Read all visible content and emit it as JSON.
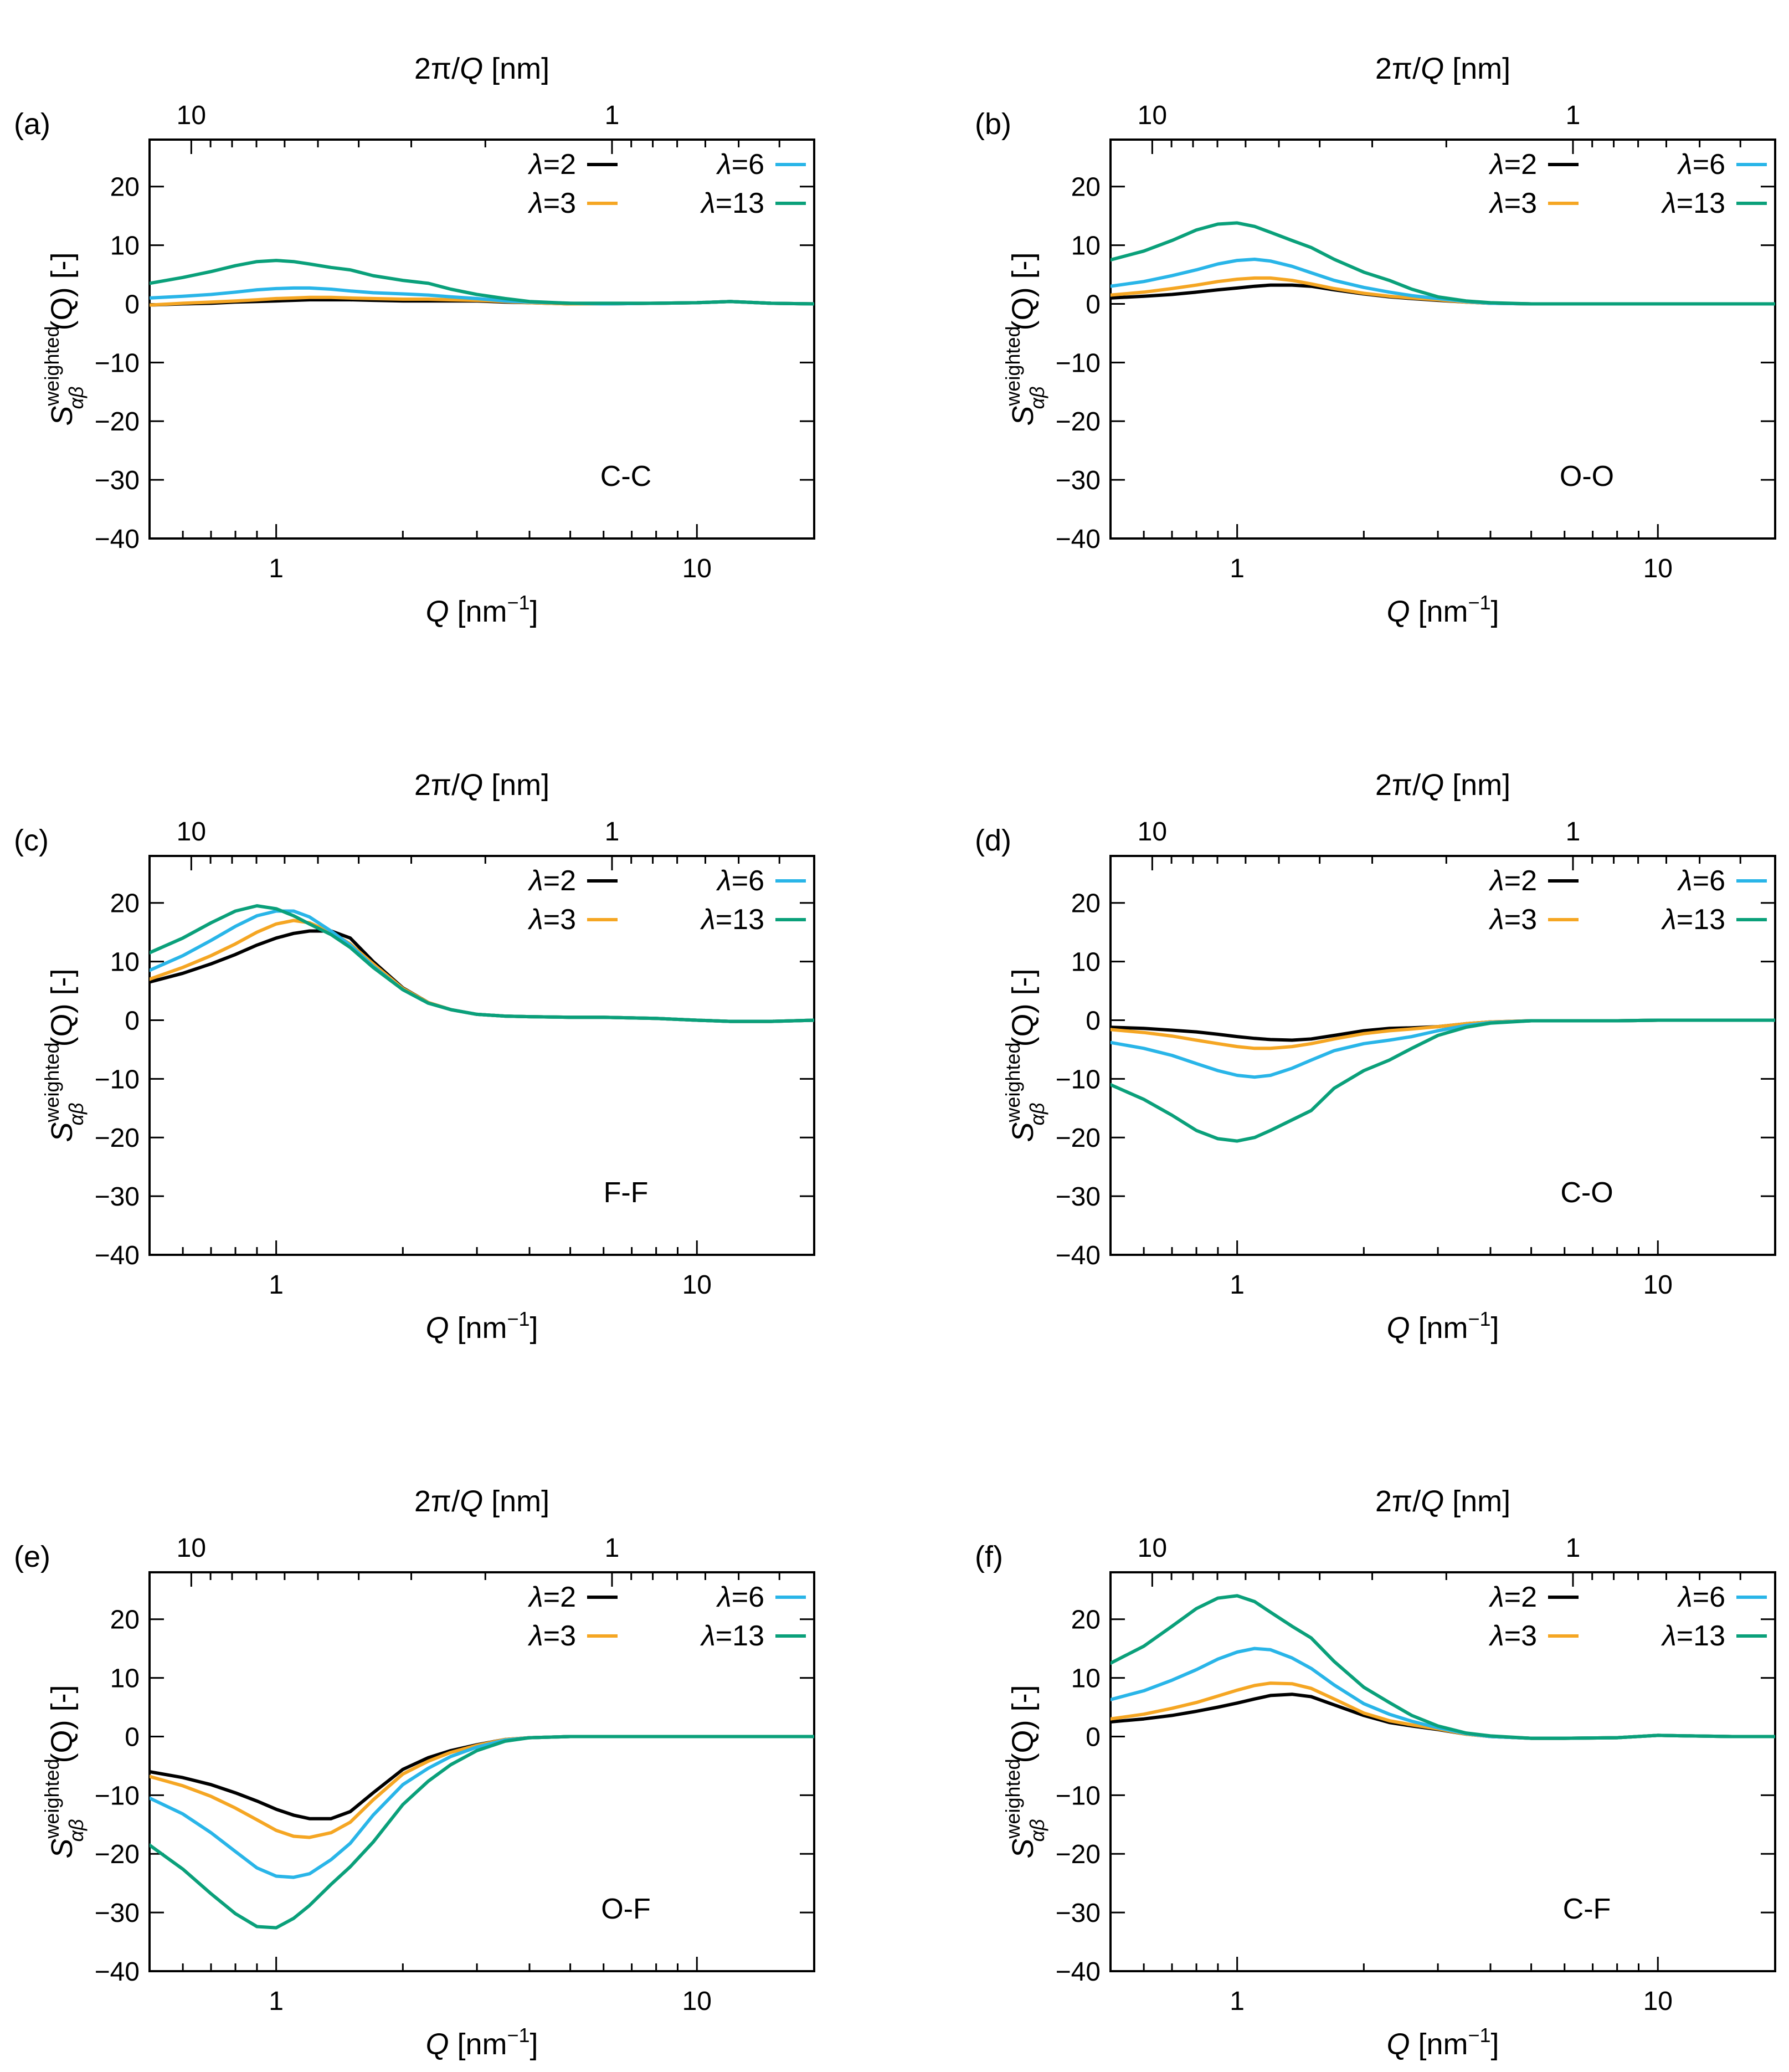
{
  "colors": {
    "lambda2": "#000000",
    "lambda3": "#f5a623",
    "lambda6": "#29b5e8",
    "lambda13": "#0aa07a"
  },
  "legend": [
    {
      "sym": "λ",
      "value": "=2",
      "key": "lambda2"
    },
    {
      "sym": "λ",
      "value": "=3",
      "key": "lambda3"
    },
    {
      "sym": "λ",
      "value": "=6",
      "key": "lambda6"
    },
    {
      "sym": "λ",
      "value": "=13",
      "key": "lambda13"
    }
  ],
  "axes": {
    "xlabel_main": "Q",
    "xlabel_unit": " [nm",
    "xlabel_exp": "−1",
    "xlabel_close": "]",
    "top_label_pre": "2π/",
    "top_label_q": "Q",
    "top_label_unit": " [nm]",
    "ylabel_S": "S",
    "ylabel_sup": "weighted",
    "ylabel_sub": "αβ",
    "ylabel_rest": "(Q) [-]",
    "xticks_bottom": [
      "1",
      "10"
    ],
    "xticks_top": [
      "10",
      "1"
    ],
    "yticks": [
      "20",
      "10",
      "0",
      "−10",
      "−20",
      "−30",
      "−40"
    ]
  },
  "chart_data": [
    {
      "type": "line",
      "tag": "(a)",
      "pair": "C-C",
      "xscale": "log",
      "xlim": [
        0.5,
        19
      ],
      "ylim": [
        -40,
        28
      ],
      "x": [
        0.5,
        0.6,
        0.7,
        0.8,
        0.9,
        1.0,
        1.1,
        1.2,
        1.35,
        1.5,
        1.7,
        2.0,
        2.3,
        2.6,
        3.0,
        3.5,
        4.0,
        5.0,
        6.0,
        8.0,
        10.0,
        12.0,
        15.0,
        19.0
      ],
      "series": [
        {
          "name": "λ=2",
          "values": [
            -0.2,
            0.0,
            0.1,
            0.3,
            0.4,
            0.5,
            0.6,
            0.7,
            0.7,
            0.7,
            0.6,
            0.5,
            0.5,
            0.5,
            0.5,
            0.3,
            0.2,
            0.0,
            0.0,
            0.1,
            0.2,
            0.4,
            0.1,
            0.0
          ]
        },
        {
          "name": "λ=3",
          "values": [
            -0.2,
            0.1,
            0.3,
            0.5,
            0.7,
            0.9,
            1.0,
            1.1,
            1.1,
            1.0,
            0.9,
            0.8,
            0.8,
            0.7,
            0.6,
            0.4,
            0.2,
            0.0,
            0.0,
            0.1,
            0.2,
            0.4,
            0.1,
            0.0
          ]
        },
        {
          "name": "λ=6",
          "values": [
            1.0,
            1.3,
            1.6,
            2.0,
            2.4,
            2.6,
            2.7,
            2.7,
            2.5,
            2.2,
            1.9,
            1.7,
            1.5,
            1.2,
            0.9,
            0.5,
            0.3,
            0.1,
            0.0,
            0.1,
            0.2,
            0.4,
            0.1,
            0.0
          ]
        },
        {
          "name": "λ=13",
          "values": [
            3.5,
            4.5,
            5.5,
            6.5,
            7.2,
            7.4,
            7.2,
            6.8,
            6.2,
            5.8,
            4.8,
            4.0,
            3.5,
            2.5,
            1.6,
            0.9,
            0.4,
            0.1,
            0.1,
            0.1,
            0.2,
            0.4,
            0.1,
            0.0
          ]
        }
      ]
    },
    {
      "type": "line",
      "tag": "(b)",
      "pair": "O-O",
      "xscale": "log",
      "xlim": [
        0.5,
        19
      ],
      "ylim": [
        -40,
        28
      ],
      "x": [
        0.5,
        0.6,
        0.7,
        0.8,
        0.9,
        1.0,
        1.1,
        1.2,
        1.35,
        1.5,
        1.7,
        2.0,
        2.3,
        2.6,
        3.0,
        3.5,
        4.0,
        5.0,
        6.0,
        8.0,
        10.0,
        12.0,
        15.0,
        19.0
      ],
      "series": [
        {
          "name": "λ=2",
          "values": [
            1.0,
            1.3,
            1.6,
            2.0,
            2.4,
            2.7,
            3.0,
            3.2,
            3.2,
            3.0,
            2.4,
            1.7,
            1.2,
            0.9,
            0.6,
            0.3,
            0.1,
            0.0,
            0.0,
            0.0,
            0.0,
            0.0,
            0.0,
            0.0
          ]
        },
        {
          "name": "λ=3",
          "values": [
            1.5,
            2.0,
            2.6,
            3.2,
            3.8,
            4.2,
            4.4,
            4.4,
            4.0,
            3.4,
            2.6,
            1.8,
            1.3,
            1.0,
            0.7,
            0.3,
            0.1,
            0.0,
            0.0,
            0.0,
            0.0,
            0.0,
            0.0,
            0.0
          ]
        },
        {
          "name": "λ=6",
          "values": [
            3.0,
            3.8,
            4.8,
            5.8,
            6.8,
            7.4,
            7.6,
            7.3,
            6.4,
            5.3,
            4.0,
            2.8,
            2.0,
            1.4,
            0.9,
            0.4,
            0.1,
            0.0,
            0.0,
            0.0,
            0.0,
            0.0,
            0.0,
            0.0
          ]
        },
        {
          "name": "λ=13",
          "values": [
            7.5,
            9.0,
            10.8,
            12.6,
            13.6,
            13.8,
            13.2,
            12.2,
            10.8,
            9.6,
            7.6,
            5.4,
            4.0,
            2.5,
            1.2,
            0.5,
            0.2,
            0.0,
            0.0,
            0.0,
            0.0,
            0.0,
            0.0,
            0.0
          ]
        }
      ]
    },
    {
      "type": "line",
      "tag": "(c)",
      "pair": "F-F",
      "xscale": "log",
      "xlim": [
        0.5,
        19
      ],
      "ylim": [
        -40,
        28
      ],
      "x": [
        0.5,
        0.6,
        0.7,
        0.8,
        0.9,
        1.0,
        1.1,
        1.2,
        1.35,
        1.5,
        1.7,
        2.0,
        2.3,
        2.6,
        3.0,
        3.5,
        4.0,
        5.0,
        6.0,
        8.0,
        10.0,
        12.0,
        15.0,
        19.0
      ],
      "series": [
        {
          "name": "λ=2",
          "values": [
            6.5,
            8.0,
            9.6,
            11.2,
            12.8,
            14.0,
            14.8,
            15.2,
            15.2,
            14.0,
            10.0,
            5.5,
            3.0,
            1.8,
            1.0,
            0.7,
            0.6,
            0.5,
            0.5,
            0.3,
            0.0,
            -0.2,
            -0.2,
            0.0
          ]
        },
        {
          "name": "λ=3",
          "values": [
            7.0,
            9.0,
            11.0,
            13.0,
            15.0,
            16.4,
            17.0,
            16.6,
            15.0,
            13.0,
            9.6,
            5.4,
            3.0,
            1.8,
            1.0,
            0.7,
            0.6,
            0.5,
            0.5,
            0.3,
            0.0,
            -0.2,
            -0.2,
            0.0
          ]
        },
        {
          "name": "λ=6",
          "values": [
            8.5,
            11.0,
            13.6,
            16.0,
            17.8,
            18.6,
            18.6,
            17.6,
            15.2,
            12.8,
            9.2,
            5.2,
            2.9,
            1.8,
            1.0,
            0.7,
            0.6,
            0.5,
            0.5,
            0.3,
            0.0,
            -0.2,
            -0.2,
            0.0
          ]
        },
        {
          "name": "λ=13",
          "values": [
            11.5,
            14.0,
            16.6,
            18.6,
            19.5,
            19.0,
            17.8,
            16.4,
            14.6,
            12.4,
            9.0,
            5.2,
            2.9,
            1.8,
            1.0,
            0.7,
            0.6,
            0.5,
            0.5,
            0.3,
            0.0,
            -0.2,
            -0.2,
            0.0
          ]
        }
      ]
    },
    {
      "type": "line",
      "tag": "(d)",
      "pair": "C-O",
      "xscale": "log",
      "xlim": [
        0.5,
        19
      ],
      "ylim": [
        -40,
        28
      ],
      "x": [
        0.5,
        0.6,
        0.7,
        0.8,
        0.9,
        1.0,
        1.1,
        1.2,
        1.35,
        1.5,
        1.7,
        2.0,
        2.3,
        2.6,
        3.0,
        3.5,
        4.0,
        5.0,
        6.0,
        8.0,
        10.0,
        12.0,
        15.0,
        19.0
      ],
      "series": [
        {
          "name": "λ=2",
          "values": [
            -1.2,
            -1.4,
            -1.7,
            -2.0,
            -2.4,
            -2.8,
            -3.1,
            -3.3,
            -3.4,
            -3.2,
            -2.6,
            -1.8,
            -1.4,
            -1.3,
            -1.1,
            -0.6,
            -0.3,
            -0.1,
            -0.1,
            -0.1,
            0.0,
            0.0,
            0.0,
            0.0
          ]
        },
        {
          "name": "λ=3",
          "values": [
            -1.6,
            -2.1,
            -2.7,
            -3.4,
            -4.0,
            -4.5,
            -4.8,
            -4.8,
            -4.5,
            -4.0,
            -3.2,
            -2.3,
            -1.8,
            -1.5,
            -1.1,
            -0.6,
            -0.3,
            -0.1,
            -0.1,
            -0.1,
            0.0,
            0.0,
            0.0,
            0.0
          ]
        },
        {
          "name": "λ=6",
          "values": [
            -3.8,
            -4.8,
            -6.0,
            -7.4,
            -8.6,
            -9.4,
            -9.7,
            -9.4,
            -8.2,
            -6.8,
            -5.2,
            -4.0,
            -3.4,
            -2.8,
            -1.8,
            -0.9,
            -0.4,
            -0.1,
            -0.1,
            -0.1,
            0.0,
            0.0,
            0.0,
            0.0
          ]
        },
        {
          "name": "λ=13",
          "values": [
            -11.0,
            -13.5,
            -16.2,
            -18.8,
            -20.2,
            -20.6,
            -20.0,
            -18.8,
            -17.0,
            -15.4,
            -11.6,
            -8.6,
            -6.8,
            -4.8,
            -2.6,
            -1.2,
            -0.5,
            -0.1,
            -0.1,
            -0.1,
            0.0,
            0.0,
            0.0,
            0.0
          ]
        }
      ]
    },
    {
      "type": "line",
      "tag": "(e)",
      "pair": "O-F",
      "xscale": "log",
      "xlim": [
        0.5,
        19
      ],
      "ylim": [
        -40,
        28
      ],
      "x": [
        0.5,
        0.6,
        0.7,
        0.8,
        0.9,
        1.0,
        1.1,
        1.2,
        1.35,
        1.5,
        1.7,
        2.0,
        2.3,
        2.6,
        3.0,
        3.5,
        4.0,
        5.0,
        6.0,
        8.0,
        10.0,
        12.0,
        15.0,
        19.0
      ],
      "series": [
        {
          "name": "λ=2",
          "values": [
            -6.0,
            -7.0,
            -8.2,
            -9.6,
            -11.0,
            -12.4,
            -13.4,
            -14.0,
            -14.0,
            -12.8,
            -9.6,
            -5.6,
            -3.6,
            -2.4,
            -1.4,
            -0.5,
            -0.2,
            0.0,
            0.0,
            0.0,
            0.0,
            0.0,
            0.0,
            0.0
          ]
        },
        {
          "name": "λ=3",
          "values": [
            -6.8,
            -8.4,
            -10.2,
            -12.2,
            -14.2,
            -16.0,
            -17.0,
            -17.2,
            -16.4,
            -14.6,
            -10.8,
            -6.4,
            -4.2,
            -2.7,
            -1.5,
            -0.5,
            -0.2,
            0.0,
            0.0,
            0.0,
            0.0,
            0.0,
            0.0,
            0.0
          ]
        },
        {
          "name": "λ=6",
          "values": [
            -10.5,
            -13.2,
            -16.4,
            -19.6,
            -22.4,
            -23.8,
            -24.0,
            -23.4,
            -21.0,
            -18.2,
            -13.4,
            -8.2,
            -5.4,
            -3.4,
            -1.8,
            -0.6,
            -0.2,
            0.0,
            0.0,
            0.0,
            0.0,
            0.0,
            0.0,
            0.0
          ]
        },
        {
          "name": "λ=13",
          "values": [
            -18.5,
            -22.6,
            -26.8,
            -30.2,
            -32.4,
            -32.6,
            -31.0,
            -28.8,
            -25.2,
            -22.2,
            -18.0,
            -11.6,
            -7.6,
            -4.8,
            -2.4,
            -0.8,
            -0.2,
            0.0,
            0.0,
            0.0,
            0.0,
            0.0,
            0.0,
            0.0
          ]
        }
      ]
    },
    {
      "type": "line",
      "tag": "(f)",
      "pair": "C-F",
      "xscale": "log",
      "xlim": [
        0.5,
        19
      ],
      "ylim": [
        -40,
        28
      ],
      "x": [
        0.5,
        0.6,
        0.7,
        0.8,
        0.9,
        1.0,
        1.1,
        1.2,
        1.35,
        1.5,
        1.7,
        2.0,
        2.3,
        2.6,
        3.0,
        3.5,
        4.0,
        5.0,
        6.0,
        8.0,
        10.0,
        12.0,
        15.0,
        19.0
      ],
      "series": [
        {
          "name": "λ=2",
          "values": [
            2.5,
            3.0,
            3.6,
            4.3,
            5.0,
            5.7,
            6.4,
            7.0,
            7.2,
            6.8,
            5.4,
            3.6,
            2.4,
            1.8,
            1.2,
            0.4,
            0.0,
            -0.3,
            -0.3,
            -0.2,
            0.2,
            0.1,
            0.0,
            0.0
          ]
        },
        {
          "name": "λ=3",
          "values": [
            3.0,
            3.8,
            4.8,
            5.8,
            6.9,
            7.9,
            8.7,
            9.1,
            9.0,
            8.2,
            6.4,
            4.0,
            2.7,
            2.0,
            1.3,
            0.4,
            0.0,
            -0.3,
            -0.3,
            -0.2,
            0.2,
            0.1,
            0.0,
            0.0
          ]
        },
        {
          "name": "λ=6",
          "values": [
            6.3,
            7.8,
            9.6,
            11.4,
            13.2,
            14.4,
            15.0,
            14.8,
            13.4,
            11.6,
            8.8,
            5.6,
            3.8,
            2.6,
            1.5,
            0.5,
            0.0,
            -0.3,
            -0.3,
            -0.2,
            0.2,
            0.1,
            0.0,
            0.0
          ]
        },
        {
          "name": "λ=13",
          "values": [
            12.5,
            15.4,
            18.8,
            21.8,
            23.6,
            24.0,
            23.0,
            21.2,
            18.8,
            16.8,
            12.8,
            8.4,
            5.8,
            3.6,
            1.8,
            0.6,
            0.1,
            -0.3,
            -0.3,
            -0.2,
            0.2,
            0.1,
            0.0,
            0.0
          ]
        }
      ]
    }
  ]
}
